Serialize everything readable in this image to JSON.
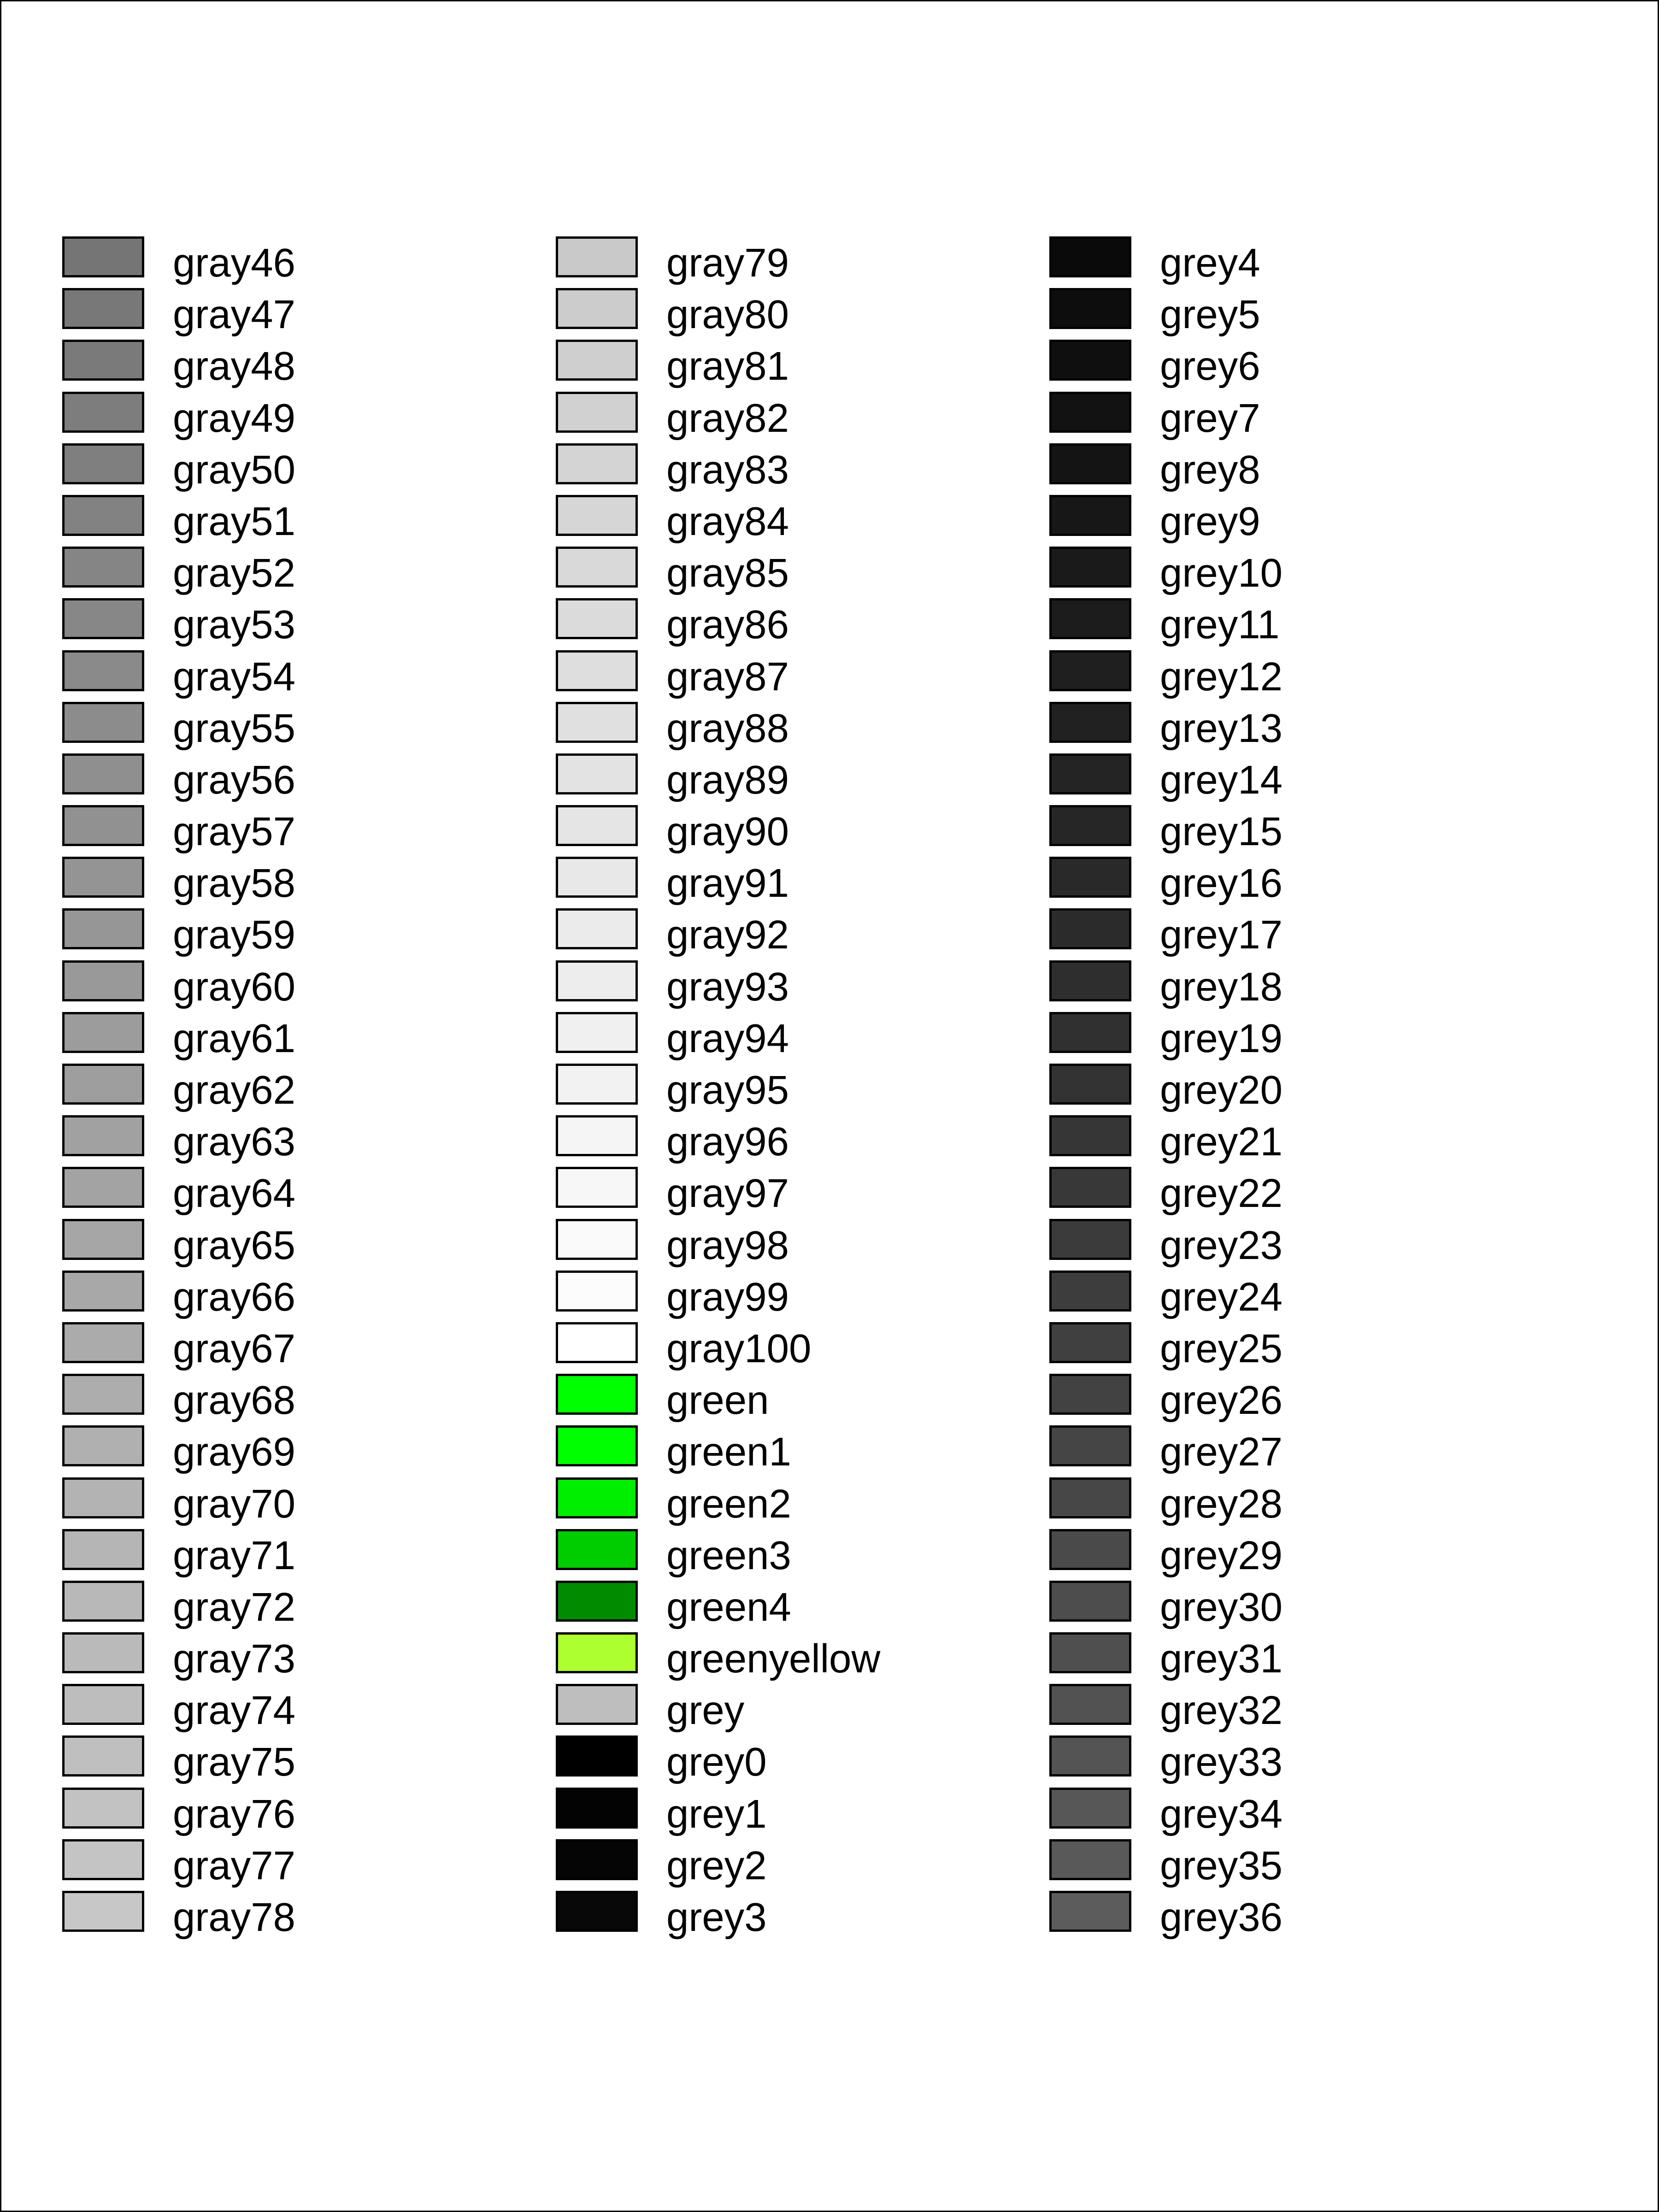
{
  "columns": [
    {
      "swatches": [
        {
          "name": "gray46",
          "color": "#757575"
        },
        {
          "name": "gray47",
          "color": "#787878"
        },
        {
          "name": "gray48",
          "color": "#7a7a7a"
        },
        {
          "name": "gray49",
          "color": "#7d7d7d"
        },
        {
          "name": "gray50",
          "color": "#7f7f7f"
        },
        {
          "name": "gray51",
          "color": "#828282"
        },
        {
          "name": "gray52",
          "color": "#858585"
        },
        {
          "name": "gray53",
          "color": "#878787"
        },
        {
          "name": "gray54",
          "color": "#8a8a8a"
        },
        {
          "name": "gray55",
          "color": "#8c8c8c"
        },
        {
          "name": "gray56",
          "color": "#8f8f8f"
        },
        {
          "name": "gray57",
          "color": "#919191"
        },
        {
          "name": "gray58",
          "color": "#949494"
        },
        {
          "name": "gray59",
          "color": "#969696"
        },
        {
          "name": "gray60",
          "color": "#999999"
        },
        {
          "name": "gray61",
          "color": "#9c9c9c"
        },
        {
          "name": "gray62",
          "color": "#9e9e9e"
        },
        {
          "name": "gray63",
          "color": "#a1a1a1"
        },
        {
          "name": "gray64",
          "color": "#a3a3a3"
        },
        {
          "name": "gray65",
          "color": "#a6a6a6"
        },
        {
          "name": "gray66",
          "color": "#a8a8a8"
        },
        {
          "name": "gray67",
          "color": "#ababab"
        },
        {
          "name": "gray68",
          "color": "#adadad"
        },
        {
          "name": "gray69",
          "color": "#b0b0b0"
        },
        {
          "name": "gray70",
          "color": "#b3b3b3"
        },
        {
          "name": "gray71",
          "color": "#b5b5b5"
        },
        {
          "name": "gray72",
          "color": "#b8b8b8"
        },
        {
          "name": "gray73",
          "color": "#bababa"
        },
        {
          "name": "gray74",
          "color": "#bdbdbd"
        },
        {
          "name": "gray75",
          "color": "#bfbfbf"
        },
        {
          "name": "gray76",
          "color": "#c2c2c2"
        },
        {
          "name": "gray77",
          "color": "#c4c4c4"
        },
        {
          "name": "gray78",
          "color": "#c7c7c7"
        }
      ]
    },
    {
      "swatches": [
        {
          "name": "gray79",
          "color": "#c9c9c9"
        },
        {
          "name": "gray80",
          "color": "#cccccc"
        },
        {
          "name": "gray81",
          "color": "#cfcfcf"
        },
        {
          "name": "gray82",
          "color": "#d1d1d1"
        },
        {
          "name": "gray83",
          "color": "#d4d4d4"
        },
        {
          "name": "gray84",
          "color": "#d6d6d6"
        },
        {
          "name": "gray85",
          "color": "#d9d9d9"
        },
        {
          "name": "gray86",
          "color": "#dbdbdb"
        },
        {
          "name": "gray87",
          "color": "#dedede"
        },
        {
          "name": "gray88",
          "color": "#e0e0e0"
        },
        {
          "name": "gray89",
          "color": "#e3e3e3"
        },
        {
          "name": "gray90",
          "color": "#e5e5e5"
        },
        {
          "name": "gray91",
          "color": "#e8e8e8"
        },
        {
          "name": "gray92",
          "color": "#ebebeb"
        },
        {
          "name": "gray93",
          "color": "#ededed"
        },
        {
          "name": "gray94",
          "color": "#f0f0f0"
        },
        {
          "name": "gray95",
          "color": "#f2f2f2"
        },
        {
          "name": "gray96",
          "color": "#f5f5f5"
        },
        {
          "name": "gray97",
          "color": "#f7f7f7"
        },
        {
          "name": "gray98",
          "color": "#fafafa"
        },
        {
          "name": "gray99",
          "color": "#fcfcfc"
        },
        {
          "name": "gray100",
          "color": "#ffffff"
        },
        {
          "name": "green",
          "color": "#00ff00"
        },
        {
          "name": "green1",
          "color": "#00ff00"
        },
        {
          "name": "green2",
          "color": "#00ee00"
        },
        {
          "name": "green3",
          "color": "#00cd00"
        },
        {
          "name": "green4",
          "color": "#008b00"
        },
        {
          "name": "greenyellow",
          "color": "#adff2f"
        },
        {
          "name": "grey",
          "color": "#bebebe"
        },
        {
          "name": "grey0",
          "color": "#000000"
        },
        {
          "name": "grey1",
          "color": "#030303"
        },
        {
          "name": "grey2",
          "color": "#050505"
        },
        {
          "name": "grey3",
          "color": "#080808"
        }
      ]
    },
    {
      "swatches": [
        {
          "name": "grey4",
          "color": "#0a0a0a"
        },
        {
          "name": "grey5",
          "color": "#0d0d0d"
        },
        {
          "name": "grey6",
          "color": "#0f0f0f"
        },
        {
          "name": "grey7",
          "color": "#121212"
        },
        {
          "name": "grey8",
          "color": "#141414"
        },
        {
          "name": "grey9",
          "color": "#171717"
        },
        {
          "name": "grey10",
          "color": "#1a1a1a"
        },
        {
          "name": "grey11",
          "color": "#1c1c1c"
        },
        {
          "name": "grey12",
          "color": "#1f1f1f"
        },
        {
          "name": "grey13",
          "color": "#212121"
        },
        {
          "name": "grey14",
          "color": "#242424"
        },
        {
          "name": "grey15",
          "color": "#262626"
        },
        {
          "name": "grey16",
          "color": "#292929"
        },
        {
          "name": "grey17",
          "color": "#2b2b2b"
        },
        {
          "name": "grey18",
          "color": "#2e2e2e"
        },
        {
          "name": "grey19",
          "color": "#303030"
        },
        {
          "name": "grey20",
          "color": "#333333"
        },
        {
          "name": "grey21",
          "color": "#363636"
        },
        {
          "name": "grey22",
          "color": "#383838"
        },
        {
          "name": "grey23",
          "color": "#3b3b3b"
        },
        {
          "name": "grey24",
          "color": "#3d3d3d"
        },
        {
          "name": "grey25",
          "color": "#404040"
        },
        {
          "name": "grey26",
          "color": "#424242"
        },
        {
          "name": "grey27",
          "color": "#454545"
        },
        {
          "name": "grey28",
          "color": "#474747"
        },
        {
          "name": "grey29",
          "color": "#4a4a4a"
        },
        {
          "name": "grey30",
          "color": "#4d4d4d"
        },
        {
          "name": "grey31",
          "color": "#4f4f4f"
        },
        {
          "name": "grey32",
          "color": "#525252"
        },
        {
          "name": "grey33",
          "color": "#545454"
        },
        {
          "name": "grey34",
          "color": "#575757"
        },
        {
          "name": "grey35",
          "color": "#595959"
        },
        {
          "name": "grey36",
          "color": "#5c5c5c"
        }
      ]
    }
  ]
}
